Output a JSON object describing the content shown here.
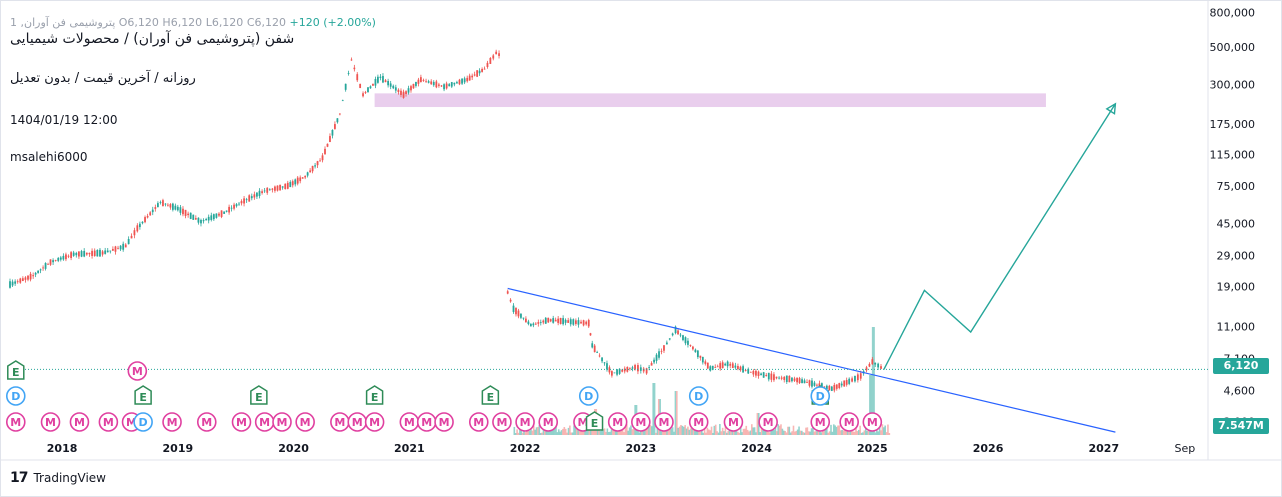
{
  "symbol_header": {
    "title": "شفن (پتروشیمی فن آوران) / محصولات شیمیایی",
    "subtitle": "روزانه / آخرین قیمت / بدون تعدیل",
    "datetime": "1404/01/19 12:00",
    "author": "msalehi6000",
    "ohlc": {
      "name": "پتروشیمی فن آوران, 1",
      "open": "O6,120",
      "high": "H6,120",
      "low": "L6,120",
      "close": "C6,120",
      "change": "+120 (+2.00%)"
    }
  },
  "branding": {
    "logo": "17",
    "text": "TradingView"
  },
  "price_tags": {
    "last": "6,120",
    "volume": "7.547M"
  },
  "colors": {
    "up": "#26a69a",
    "down": "#ef5350",
    "trendline": "#2962ff",
    "zone": "#e1bee7",
    "projection": "#26a69a",
    "event_m": "#e040a0",
    "event_e": "#2e8b57",
    "event_d": "#42a5f5"
  },
  "chart_data": {
    "type": "line",
    "y_scale": "log",
    "ylim": [
      2500,
      850000
    ],
    "y_ticks": [
      "800,000",
      "500,000",
      "300,000",
      "175,000",
      "115,000",
      "75,000",
      "45,000",
      "29,000",
      "19,000",
      "11,000",
      "7,100",
      "4,600",
      "3,000"
    ],
    "x_ticks": [
      "2018",
      "2019",
      "2020",
      "2021",
      "2022",
      "2023",
      "2024",
      "2025",
      "2026",
      "2027",
      "Sep"
    ],
    "x_range": [
      2017.55,
      2027.9
    ],
    "series": [
      {
        "role": "pre-split",
        "x": [
          2017.55,
          2017.75,
          2017.9,
          2018.1,
          2018.35,
          2018.55,
          2018.65,
          2018.85,
          2019.0,
          2019.2,
          2019.4,
          2019.55,
          2019.75,
          2019.95,
          2020.1,
          2020.25,
          2020.4,
          2020.5,
          2020.6,
          2020.75,
          2020.95,
          2021.1,
          2021.3,
          2021.5,
          2021.65,
          2021.75,
          2021.8
        ],
        "y": [
          19500,
          22000,
          26500,
          29500,
          30000,
          33000,
          42000,
          60000,
          55000,
          46000,
          52000,
          60000,
          70000,
          75000,
          85000,
          110000,
          200000,
          420000,
          260000,
          330000,
          260000,
          320000,
          290000,
          320000,
          370000,
          460000,
          440000
        ]
      },
      {
        "role": "post-split",
        "x": [
          2021.85,
          2021.9,
          2022.05,
          2022.2,
          2022.35,
          2022.55,
          2022.58,
          2022.75,
          2022.95,
          2023.05,
          2023.2,
          2023.3,
          2023.45,
          2023.6,
          2023.75,
          2023.95,
          2024.15,
          2024.35,
          2024.5,
          2024.65,
          2024.8,
          2024.9,
          2025.0,
          2025.1
        ],
        "y": [
          17500,
          14000,
          11200,
          12000,
          11800,
          11500,
          8500,
          5800,
          6300,
          6000,
          8200,
          10500,
          8200,
          6200,
          6600,
          5900,
          5500,
          5300,
          5000,
          4700,
          5200,
          5600,
          6800,
          6120
        ]
      }
    ],
    "trendline": {
      "x": [
        2021.85,
        2027.1
      ],
      "y": [
        18500,
        2600
      ]
    },
    "resistance_zone": {
      "x": [
        2020.7,
        2026.5
      ],
      "y": [
        220000,
        265000
      ]
    },
    "projection": {
      "x": [
        2025.1,
        2025.45,
        2025.85,
        2027.1
      ],
      "y": [
        6120,
        18000,
        10200,
        230000
      ]
    },
    "event_markers": {
      "row_1": [
        {
          "label": "E",
          "x": 2017.6
        },
        {
          "label": "M",
          "x": 2018.65
        }
      ],
      "row_2": [
        {
          "label": "D",
          "x": 2017.6
        },
        {
          "label": "E",
          "x": 2018.7
        },
        {
          "label": "E",
          "x": 2019.7
        },
        {
          "label": "E",
          "x": 2020.7
        },
        {
          "label": "E",
          "x": 2021.7
        },
        {
          "label": "D",
          "x": 2022.55
        },
        {
          "label": "D",
          "x": 2023.5
        },
        {
          "label": "E",
          "x": 2024.55
        },
        {
          "label": "D",
          "x": 2024.55
        }
      ],
      "row_3": [
        {
          "label": "M",
          "x": 2017.6
        },
        {
          "label": "M",
          "x": 2017.9
        },
        {
          "label": "M",
          "x": 2018.15
        },
        {
          "label": "M",
          "x": 2018.4
        },
        {
          "label": "M",
          "x": 2018.6
        },
        {
          "label": "D",
          "x": 2018.7
        },
        {
          "label": "M",
          "x": 2018.95
        },
        {
          "label": "M",
          "x": 2019.25
        },
        {
          "label": "M",
          "x": 2019.55
        },
        {
          "label": "M",
          "x": 2019.75
        },
        {
          "label": "M",
          "x": 2019.9
        },
        {
          "label": "M",
          "x": 2020.1
        },
        {
          "label": "M",
          "x": 2020.4
        },
        {
          "label": "M",
          "x": 2020.55
        },
        {
          "label": "M",
          "x": 2020.7
        },
        {
          "label": "M",
          "x": 2021.0
        },
        {
          "label": "M",
          "x": 2021.15
        },
        {
          "label": "M",
          "x": 2021.3
        },
        {
          "label": "M",
          "x": 2021.6
        },
        {
          "label": "M",
          "x": 2021.8
        },
        {
          "label": "M",
          "x": 2022.0
        },
        {
          "label": "M",
          "x": 2022.2
        },
        {
          "label": "M",
          "x": 2022.5
        },
        {
          "label": "E",
          "x": 2022.6
        },
        {
          "label": "M",
          "x": 2022.8
        },
        {
          "label": "M",
          "x": 2023.0
        },
        {
          "label": "M",
          "x": 2023.2
        },
        {
          "label": "M",
          "x": 2023.5
        },
        {
          "label": "M",
          "x": 2023.8
        },
        {
          "label": "M",
          "x": 2024.1
        },
        {
          "label": "M",
          "x": 2024.55
        },
        {
          "label": "M",
          "x": 2024.8
        },
        {
          "label": "M",
          "x": 2025.0
        }
      ]
    },
    "volume_note": "volume bars along bottom, largest spikes in 2023 and early 2025"
  }
}
